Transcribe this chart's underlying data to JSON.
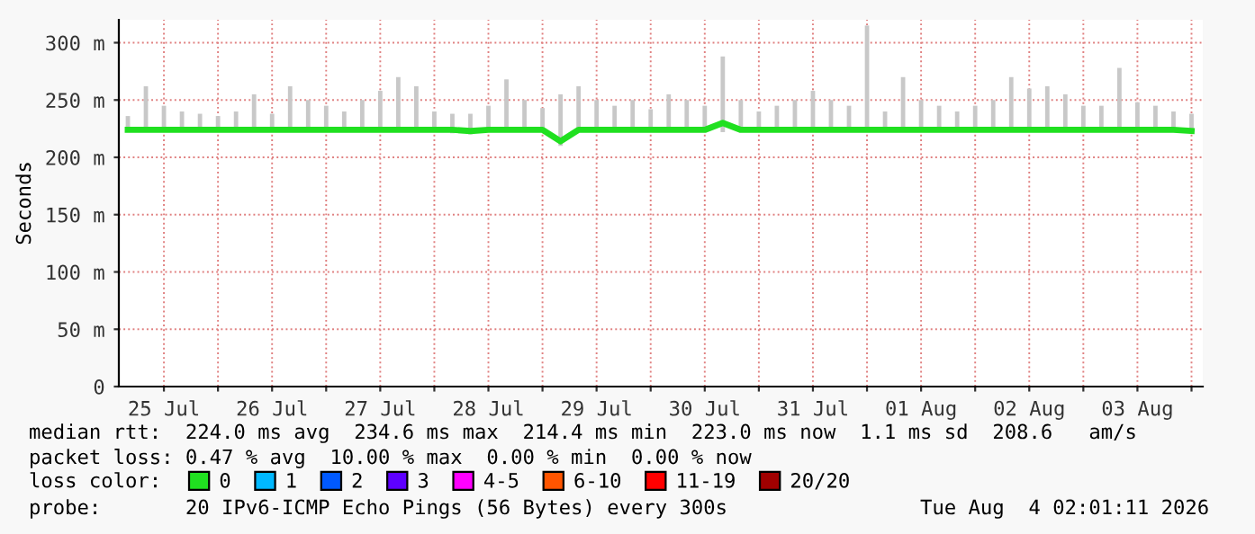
{
  "chart_data": {
    "type": "line",
    "ylabel": "Seconds",
    "xlim": [
      "2026-07-25T02:00",
      "2026-08-04T02:30"
    ],
    "xticks": [
      {
        "value": "2026-07-25T12:00",
        "label": "25 Jul"
      },
      {
        "value": "2026-07-26T00:00",
        "label": null
      },
      {
        "value": "2026-07-26T12:00",
        "label": "26 Jul"
      },
      {
        "value": "2026-07-27T00:00",
        "label": null
      },
      {
        "value": "2026-07-27T12:00",
        "label": "27 Jul"
      },
      {
        "value": "2026-07-28T00:00",
        "label": null
      },
      {
        "value": "2026-07-28T12:00",
        "label": "28 Jul"
      },
      {
        "value": "2026-07-29T00:00",
        "label": null
      },
      {
        "value": "2026-07-29T12:00",
        "label": "29 Jul"
      },
      {
        "value": "2026-07-30T00:00",
        "label": null
      },
      {
        "value": "2026-07-30T12:00",
        "label": "30 Jul"
      },
      {
        "value": "2026-07-31T00:00",
        "label": null
      },
      {
        "value": "2026-07-31T12:00",
        "label": "31 Jul"
      },
      {
        "value": "2026-08-01T00:00",
        "label": null
      },
      {
        "value": "2026-08-01T12:00",
        "label": "01 Aug"
      },
      {
        "value": "2026-08-02T00:00",
        "label": null
      },
      {
        "value": "2026-08-02T12:00",
        "label": "02 Aug"
      },
      {
        "value": "2026-08-03T00:00",
        "label": null
      },
      {
        "value": "2026-08-03T12:00",
        "label": "03 Aug"
      },
      {
        "value": "2026-08-04T00:00",
        "label": null
      }
    ],
    "ylim": [
      0,
      320
    ],
    "yticks": [
      0,
      {
        "value": 50,
        "label": "50 m"
      },
      {
        "value": 100,
        "label": "100 m"
      },
      {
        "value": 150,
        "label": "150 m"
      },
      {
        "value": 200,
        "label": "200 m"
      },
      {
        "value": 250,
        "label": "250 m"
      },
      {
        "value": 300,
        "label": "300 m"
      }
    ],
    "grid": true,
    "legend": "bottom",
    "legend_title": "loss color:",
    "x": [
      "2026-07-25T04:00",
      "2026-07-25T08:00",
      "2026-07-25T12:00",
      "2026-07-25T16:00",
      "2026-07-25T20:00",
      "2026-07-26T00:00",
      "2026-07-26T04:00",
      "2026-07-26T08:00",
      "2026-07-26T12:00",
      "2026-07-26T16:00",
      "2026-07-26T20:00",
      "2026-07-27T00:00",
      "2026-07-27T04:00",
      "2026-07-27T08:00",
      "2026-07-27T12:00",
      "2026-07-27T16:00",
      "2026-07-27T20:00",
      "2026-07-28T00:00",
      "2026-07-28T04:00",
      "2026-07-28T08:00",
      "2026-07-28T12:00",
      "2026-07-28T16:00",
      "2026-07-28T20:00",
      "2026-07-29T00:00",
      "2026-07-29T04:00",
      "2026-07-29T08:00",
      "2026-07-29T12:00",
      "2026-07-29T16:00",
      "2026-07-29T20:00",
      "2026-07-30T00:00",
      "2026-07-30T04:00",
      "2026-07-30T08:00",
      "2026-07-30T12:00",
      "2026-07-30T16:00",
      "2026-07-30T20:00",
      "2026-07-31T00:00",
      "2026-07-31T04:00",
      "2026-07-31T08:00",
      "2026-07-31T12:00",
      "2026-07-31T16:00",
      "2026-07-31T20:00",
      "2026-08-01T00:00",
      "2026-08-01T04:00",
      "2026-08-01T08:00",
      "2026-08-01T12:00",
      "2026-08-01T16:00",
      "2026-08-01T20:00",
      "2026-08-02T00:00",
      "2026-08-02T04:00",
      "2026-08-02T08:00",
      "2026-08-02T12:00",
      "2026-08-02T16:00",
      "2026-08-02T20:00",
      "2026-08-03T00:00",
      "2026-08-03T04:00",
      "2026-08-03T08:00",
      "2026-08-03T12:00",
      "2026-08-03T16:00",
      "2026-08-03T20:00",
      "2026-08-04T00:00"
    ],
    "series": [
      {
        "name": "0",
        "color": "#20e020",
        "values": [
          224,
          224,
          224,
          224,
          224,
          224,
          224,
          224,
          224,
          224,
          224,
          224,
          224,
          224,
          224,
          224,
          224,
          224,
          224,
          223,
          224,
          224,
          224,
          224,
          214,
          224,
          224,
          224,
          224,
          224,
          224,
          224,
          224,
          230,
          224,
          224,
          224,
          224,
          224,
          224,
          224,
          224,
          224,
          224,
          224,
          224,
          224,
          224,
          224,
          224,
          224,
          224,
          224,
          224,
          224,
          224,
          224,
          224,
          224,
          223
        ],
        "lower": [
          222,
          222,
          222,
          222,
          222,
          222,
          222,
          222,
          222,
          222,
          222,
          222,
          222,
          222,
          222,
          222,
          222,
          222,
          221,
          220,
          222,
          222,
          222,
          222,
          210,
          222,
          222,
          222,
          222,
          222,
          222,
          222,
          222,
          222,
          222,
          222,
          222,
          222,
          222,
          222,
          222,
          222,
          222,
          222,
          222,
          222,
          222,
          222,
          222,
          222,
          222,
          222,
          222,
          222,
          222,
          222,
          222,
          222,
          222,
          221
        ],
        "upper": [
          236,
          262,
          245,
          240,
          238,
          236,
          240,
          255,
          238,
          262,
          250,
          245,
          240,
          250,
          258,
          270,
          262,
          240,
          238,
          238,
          245,
          268,
          250,
          243,
          255,
          262,
          250,
          245,
          250,
          242,
          255,
          250,
          245,
          288,
          250,
          240,
          245,
          250,
          258,
          250,
          245,
          315,
          240,
          270,
          250,
          245,
          240,
          245,
          250,
          270,
          260,
          262,
          255,
          245,
          245,
          278,
          248,
          245,
          240,
          238
        ]
      },
      {
        "name": "1",
        "color": "#00b8ff",
        "values": [
          null,
          null,
          null,
          null,
          null,
          null,
          null,
          null,
          null,
          null,
          null,
          null,
          null,
          null,
          null,
          null,
          null,
          null,
          null,
          null,
          null,
          null,
          null,
          null,
          null,
          null,
          null,
          null,
          null,
          null,
          null,
          null,
          null,
          null,
          null,
          null,
          null,
          null,
          null,
          null,
          null,
          null,
          null,
          null,
          null,
          null,
          null,
          null,
          null,
          null,
          null,
          null,
          null,
          null,
          null,
          null,
          null,
          null,
          null,
          null
        ]
      },
      {
        "name": "2",
        "color": "#0059ff",
        "values": [
          null,
          null,
          null,
          null,
          null,
          null,
          null,
          null,
          null,
          null,
          null,
          null,
          null,
          null,
          null,
          null,
          null,
          null,
          null,
          null,
          null,
          null,
          null,
          null,
          null,
          null,
          null,
          null,
          null,
          null,
          null,
          null,
          null,
          null,
          null,
          null,
          null,
          null,
          null,
          null,
          null,
          null,
          null,
          null,
          null,
          null,
          null,
          null,
          null,
          null,
          null,
          null,
          null,
          null,
          null,
          null,
          null,
          null,
          null,
          null
        ]
      },
      {
        "name": "3",
        "color": "#5e00ff",
        "values": [
          null,
          null,
          null,
          null,
          null,
          null,
          null,
          null,
          null,
          null,
          null,
          null,
          null,
          null,
          null,
          null,
          null,
          null,
          null,
          null,
          null,
          null,
          null,
          null,
          null,
          null,
          null,
          null,
          null,
          null,
          null,
          null,
          null,
          null,
          null,
          null,
          null,
          null,
          null,
          null,
          null,
          null,
          null,
          null,
          null,
          null,
          null,
          null,
          null,
          null,
          null,
          null,
          null,
          null,
          null,
          null,
          null,
          null,
          null,
          null
        ]
      },
      {
        "name": "4-5",
        "color": "#ff00ff",
        "values": [
          null,
          null,
          null,
          null,
          null,
          null,
          null,
          null,
          null,
          null,
          null,
          null,
          null,
          null,
          null,
          null,
          null,
          null,
          null,
          null,
          null,
          null,
          null,
          null,
          null,
          null,
          null,
          null,
          null,
          null,
          null,
          null,
          null,
          null,
          null,
          null,
          null,
          null,
          null,
          null,
          null,
          null,
          null,
          null,
          null,
          null,
          null,
          null,
          null,
          null,
          null,
          null,
          null,
          null,
          null,
          null,
          null,
          null,
          null,
          null
        ]
      },
      {
        "name": "6-10",
        "color": "#ff5500",
        "values": [
          null,
          null,
          null,
          null,
          null,
          null,
          null,
          null,
          null,
          null,
          null,
          null,
          null,
          null,
          null,
          null,
          null,
          null,
          null,
          null,
          null,
          null,
          null,
          null,
          null,
          null,
          null,
          null,
          null,
          null,
          null,
          null,
          null,
          null,
          null,
          null,
          null,
          null,
          null,
          null,
          null,
          null,
          null,
          null,
          null,
          null,
          null,
          null,
          null,
          null,
          null,
          null,
          null,
          null,
          null,
          null,
          null,
          null,
          null,
          null
        ]
      },
      {
        "name": "11-19",
        "color": "#ff0000",
        "values": [
          null,
          null,
          null,
          null,
          null,
          null,
          null,
          null,
          null,
          null,
          null,
          null,
          null,
          null,
          null,
          null,
          null,
          null,
          null,
          null,
          null,
          null,
          null,
          null,
          null,
          null,
          null,
          null,
          null,
          null,
          null,
          null,
          null,
          null,
          null,
          null,
          null,
          null,
          null,
          null,
          null,
          null,
          null,
          null,
          null,
          null,
          null,
          null,
          null,
          null,
          null,
          null,
          null,
          null,
          null,
          null,
          null,
          null,
          null,
          null
        ]
      },
      {
        "name": "20/20",
        "color": "#a10000",
        "values": [
          null,
          null,
          null,
          null,
          null,
          null,
          null,
          null,
          null,
          null,
          null,
          null,
          null,
          null,
          null,
          null,
          null,
          null,
          null,
          null,
          null,
          null,
          null,
          null,
          null,
          null,
          null,
          null,
          null,
          null,
          null,
          null,
          null,
          null,
          null,
          null,
          null,
          null,
          null,
          null,
          null,
          null,
          null,
          null,
          null,
          null,
          null,
          null,
          null,
          null,
          null,
          null,
          null,
          null,
          null,
          null,
          null,
          null,
          null,
          null
        ]
      }
    ],
    "annotations": [
      "median rtt:  224.0 ms avg  234.6 ms max  214.4 ms min  223.0 ms now  1.1 ms sd  208.6   am/s",
      "packet loss: 0.47 % avg  10.00 % max  0.00 % min  0.00 % now",
      "probe:       20 IPv6-ICMP Echo Pings (56 Bytes) every 300s                Tue Aug  4 02:01:11 2026"
    ]
  }
}
